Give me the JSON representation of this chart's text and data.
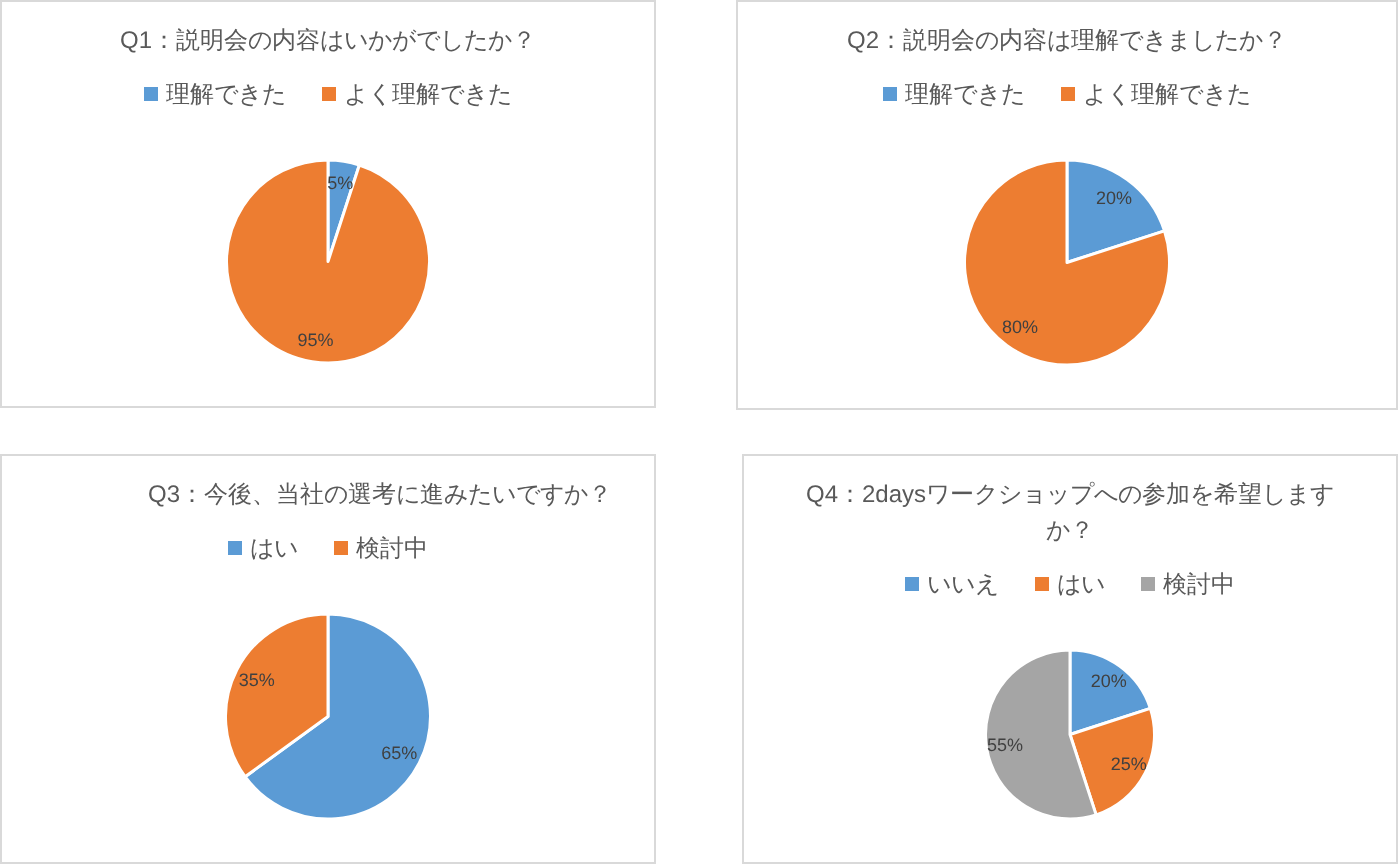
{
  "chart_data": [
    {
      "type": "pie",
      "title": "Q1：説明会の内容はいかがでしたか？",
      "categories": [
        "理解できた",
        "よく理解できた"
      ],
      "values": [
        5,
        95
      ],
      "colors": [
        "#5b9bd5",
        "#ed7d31"
      ],
      "value_labels": [
        "5%",
        "95%"
      ],
      "legend": "top"
    },
    {
      "type": "pie",
      "title": "Q2：説明会の内容は理解できましたか？",
      "categories": [
        "理解できた",
        "よく理解できた"
      ],
      "values": [
        20,
        80
      ],
      "colors": [
        "#5b9bd5",
        "#ed7d31"
      ],
      "value_labels": [
        "20%",
        "80%"
      ],
      "legend": "top"
    },
    {
      "type": "pie",
      "title": "Q3：今後、当社の選考に進みたいですか？",
      "categories": [
        "はい",
        "検討中"
      ],
      "values": [
        65,
        35
      ],
      "colors": [
        "#5b9bd5",
        "#ed7d31"
      ],
      "value_labels": [
        "65%",
        "35%"
      ],
      "legend": "top"
    },
    {
      "type": "pie",
      "title": "Q4：2daysワークショップへの参加を希望しますか？",
      "categories": [
        "いいえ",
        "はい",
        "検討中"
      ],
      "values": [
        20,
        25,
        55
      ],
      "colors": [
        "#5b9bd5",
        "#ed7d31",
        "#a5a5a5"
      ],
      "value_labels": [
        "20%",
        "25%",
        "55%"
      ],
      "legend": "top"
    }
  ]
}
